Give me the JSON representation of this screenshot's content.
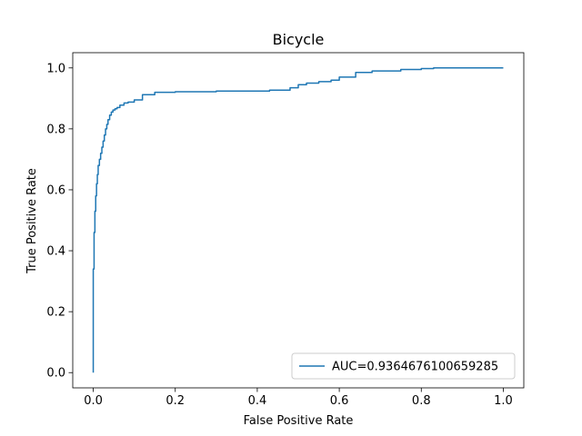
{
  "chart_data": {
    "type": "line",
    "title": "Bicycle",
    "xlabel": "False Positive Rate",
    "ylabel": "True Positive Rate",
    "xlim": [
      -0.05,
      1.05
    ],
    "ylim": [
      -0.05,
      1.05
    ],
    "xticks": [
      "0.0",
      "0.2",
      "0.4",
      "0.6",
      "0.8",
      "1.0"
    ],
    "yticks": [
      "0.0",
      "0.2",
      "0.4",
      "0.6",
      "0.8",
      "1.0"
    ],
    "grid": false,
    "legend_position": "lower right",
    "series": [
      {
        "name": "AUC=0.9364676100659285",
        "color": "#1f77b4",
        "x": [
          0.0,
          0.0,
          0.002,
          0.002,
          0.004,
          0.004,
          0.006,
          0.006,
          0.008,
          0.008,
          0.01,
          0.01,
          0.012,
          0.012,
          0.015,
          0.015,
          0.018,
          0.018,
          0.021,
          0.021,
          0.024,
          0.024,
          0.027,
          0.027,
          0.03,
          0.03,
          0.033,
          0.033,
          0.036,
          0.036,
          0.04,
          0.04,
          0.044,
          0.044,
          0.048,
          0.048,
          0.053,
          0.053,
          0.058,
          0.058,
          0.065,
          0.065,
          0.075,
          0.075,
          0.085,
          0.085,
          0.1,
          0.1,
          0.12,
          0.12,
          0.15,
          0.15,
          0.2,
          0.2,
          0.3,
          0.3,
          0.43,
          0.43,
          0.48,
          0.48,
          0.5,
          0.5,
          0.52,
          0.52,
          0.55,
          0.55,
          0.58,
          0.58,
          0.6,
          0.6,
          0.64,
          0.64,
          0.68,
          0.68,
          0.75,
          0.75,
          0.8,
          0.8,
          0.83,
          0.83,
          1.0
        ],
        "y": [
          0.0,
          0.34,
          0.34,
          0.46,
          0.46,
          0.53,
          0.53,
          0.58,
          0.58,
          0.62,
          0.62,
          0.65,
          0.65,
          0.68,
          0.68,
          0.7,
          0.7,
          0.72,
          0.72,
          0.74,
          0.74,
          0.76,
          0.76,
          0.78,
          0.78,
          0.8,
          0.8,
          0.815,
          0.815,
          0.83,
          0.83,
          0.845,
          0.845,
          0.855,
          0.855,
          0.862,
          0.862,
          0.866,
          0.866,
          0.87,
          0.87,
          0.878,
          0.878,
          0.885,
          0.885,
          0.888,
          0.888,
          0.895,
          0.895,
          0.912,
          0.912,
          0.92,
          0.92,
          0.922,
          0.922,
          0.924,
          0.924,
          0.927,
          0.927,
          0.935,
          0.935,
          0.945,
          0.945,
          0.95,
          0.95,
          0.955,
          0.955,
          0.96,
          0.96,
          0.97,
          0.97,
          0.985,
          0.985,
          0.99,
          0.99,
          0.995,
          0.995,
          0.998,
          0.998,
          1.0,
          1.0
        ]
      }
    ]
  }
}
